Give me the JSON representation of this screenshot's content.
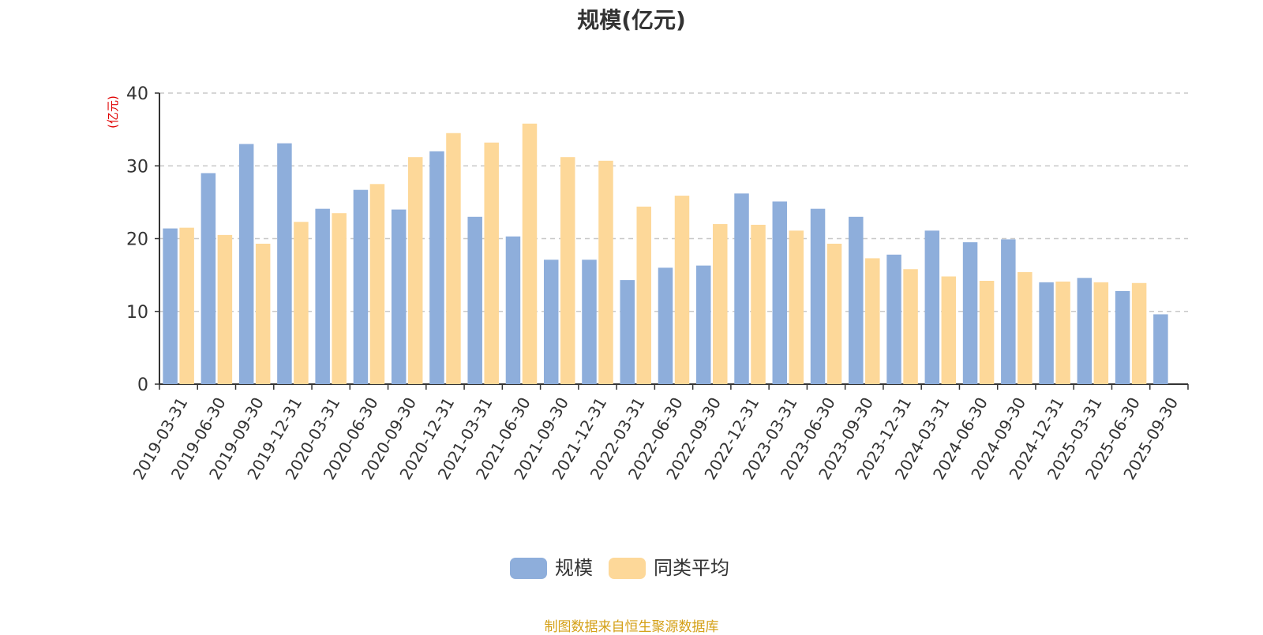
{
  "chart_data": {
    "type": "bar",
    "title": "规模(亿元)",
    "ylabel": "(亿元)",
    "xlabel": "",
    "ylim": [
      0,
      40
    ],
    "yticks": [
      0,
      10,
      20,
      30,
      40
    ],
    "grid": "horizontal-dashed",
    "legend_position": "bottom-center",
    "categories": [
      "2019-03-31",
      "2019-06-30",
      "2019-09-30",
      "2019-12-31",
      "2020-03-31",
      "2020-06-30",
      "2020-09-30",
      "2020-12-31",
      "2021-03-31",
      "2021-06-30",
      "2021-09-30",
      "2021-12-31",
      "2022-03-31",
      "2022-06-30",
      "2022-09-30",
      "2022-12-31",
      "2023-03-31",
      "2023-06-30",
      "2023-09-30",
      "2023-12-31",
      "2024-03-31",
      "2024-06-30",
      "2024-09-30",
      "2024-12-31",
      "2025-03-31",
      "2025-06-30",
      "2025-09-30"
    ],
    "series": [
      {
        "name": "规模",
        "color": "#8eaedb",
        "values": [
          21.4,
          29.0,
          33.0,
          33.1,
          24.1,
          26.7,
          24.0,
          32.0,
          23.0,
          20.3,
          17.1,
          17.1,
          14.3,
          16.0,
          16.3,
          26.2,
          25.1,
          24.1,
          23.0,
          17.8,
          21.1,
          19.5,
          19.9,
          14.0,
          14.6,
          12.8,
          9.6
        ]
      },
      {
        "name": "同类平均",
        "color": "#fdd899",
        "values": [
          21.5,
          20.5,
          19.3,
          22.3,
          23.5,
          27.5,
          31.2,
          34.5,
          33.2,
          35.8,
          31.2,
          30.7,
          24.4,
          25.9,
          22.0,
          21.9,
          21.1,
          19.3,
          17.3,
          15.8,
          14.8,
          14.2,
          15.4,
          14.1,
          14.0,
          13.9,
          null
        ]
      }
    ]
  },
  "footer": {
    "source": "制图数据来自恒生聚源数据库"
  }
}
